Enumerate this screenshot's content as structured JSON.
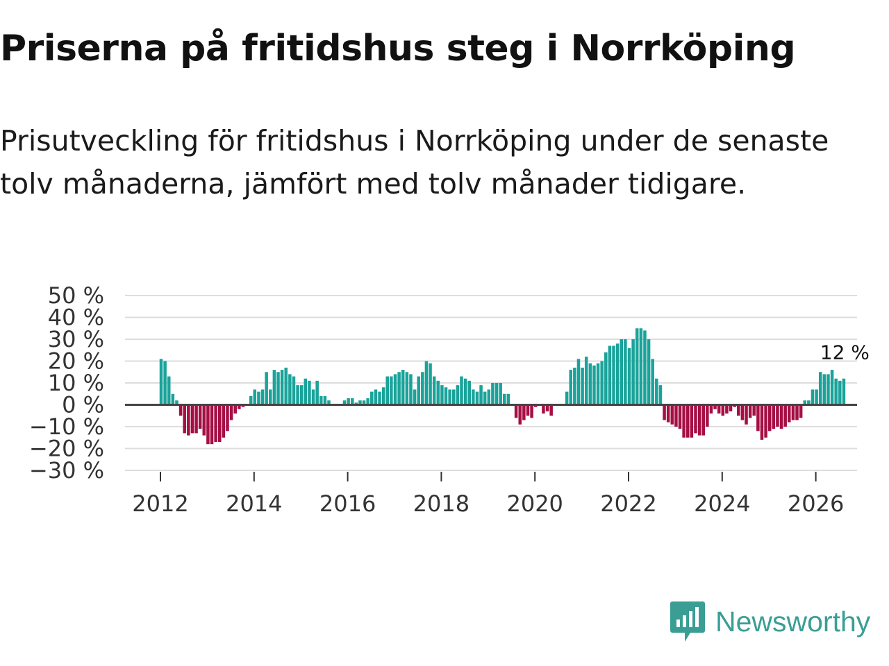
{
  "title": "Priserna på fritidshus steg i Norrköping",
  "subtitle": "Prisutveckling för fritidshus i Norrköping under de senaste tolv månaderna, jämfört med tolv månader tidigare.",
  "brand": {
    "name": "Newsworthy",
    "icon": "newsworthy-logo-icon"
  },
  "colors": {
    "positive": "#1aa39a",
    "negative": "#a50f43",
    "zero_line": "#444444",
    "grid": "#dddddd",
    "brand": "#3a9e95"
  },
  "chart_data": {
    "type": "bar",
    "title": "Priserna på fritidshus steg i Norrköping",
    "xlabel": "",
    "ylabel": "",
    "ylim": [
      -30,
      50
    ],
    "yticks": [
      50,
      40,
      30,
      20,
      10,
      0,
      -10,
      -20,
      -30
    ],
    "ytick_labels": [
      "50 %",
      "40 %",
      "30 %",
      "20 %",
      "10 %",
      "0 %",
      "−10 %",
      "−20 %",
      "−30 %"
    ],
    "xticks": [
      2012,
      2014,
      2016,
      2018,
      2020,
      2022,
      2024,
      2026
    ],
    "xtick_labels": [
      "2012",
      "2014",
      "2016",
      "2018",
      "2020",
      "2022",
      "2024",
      "2026"
    ],
    "grid": true,
    "start": {
      "year": 2012,
      "month": 1
    },
    "frequency": "monthly",
    "annotation": {
      "text": "12 %",
      "value": 12,
      "position": "last-bar"
    },
    "values": [
      21,
      20,
      13,
      5,
      2,
      -5,
      -13,
      -14,
      -13,
      -13,
      -11,
      -14,
      -18,
      -18,
      -17,
      -17,
      -15,
      -12,
      -7,
      -4,
      -2,
      -1,
      0,
      4,
      7,
      6,
      7,
      15,
      7,
      16,
      15,
      16,
      17,
      14,
      13,
      9,
      9,
      12,
      11,
      7,
      11,
      4,
      4,
      2,
      0,
      0,
      0,
      2,
      3,
      3,
      1,
      2,
      2,
      3,
      6,
      7,
      6,
      8,
      13,
      13,
      14,
      15,
      16,
      15,
      14,
      7,
      13,
      15,
      20,
      19,
      13,
      11,
      9,
      8,
      7,
      7,
      9,
      13,
      12,
      11,
      7,
      6,
      9,
      6,
      7,
      10,
      10,
      10,
      5,
      5,
      0,
      -6,
      -9,
      -7,
      -5,
      -6,
      -1,
      0,
      -4,
      -3,
      -5,
      0,
      0,
      0,
      6,
      16,
      17,
      21,
      17,
      22,
      19,
      18,
      19,
      20,
      24,
      27,
      27,
      28,
      30,
      30,
      26,
      30,
      35,
      35,
      34,
      30,
      21,
      12,
      9,
      -7,
      -8,
      -9,
      -10,
      -11,
      -15,
      -15,
      -15,
      -13,
      -14,
      -14,
      -10,
      -4,
      -2,
      -4,
      -5,
      -4,
      -3,
      -1,
      -5,
      -7,
      -9,
      -6,
      -5,
      -12,
      -16,
      -15,
      -12,
      -11,
      -10,
      -11,
      -10,
      -8,
      -7,
      -7,
      -6,
      2,
      2,
      7,
      7,
      15,
      14,
      14,
      16,
      12,
      11,
      12
    ]
  }
}
